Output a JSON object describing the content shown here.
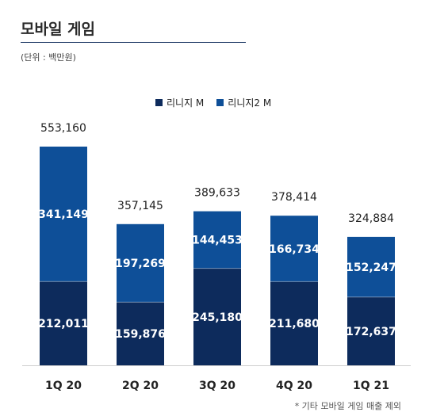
{
  "header": {
    "title": "모바일 게임",
    "unit": "(단위 : 백만원)"
  },
  "footnote": "* 기타 모바일 게임 매출 제외",
  "colors": {
    "lineage_m": "#0d2b5c",
    "lineage2_m": "#0e4f98",
    "rule": "#1f3a66",
    "axis": "#cfcfcf"
  },
  "chart_data": {
    "type": "bar",
    "stacked": true,
    "title": "모바일 게임",
    "ylabel": "",
    "xlabel": "",
    "ylim": [
      0,
      600000
    ],
    "legend_position": "top-center",
    "grid": false,
    "categories": [
      "1Q 20",
      "2Q 20",
      "3Q 20",
      "4Q 20",
      "1Q 21"
    ],
    "series": [
      {
        "name": "리니지 M",
        "color": "#0d2b5c",
        "values": [
          212011,
          159876,
          245180,
          211680,
          172637
        ],
        "labels": [
          "212,011",
          "159,876",
          "245,180",
          "211,680",
          "172,637"
        ]
      },
      {
        "name": "리니지2 M",
        "color": "#0e4f98",
        "values": [
          341149,
          197269,
          144453,
          166734,
          152247
        ],
        "labels": [
          "341,149",
          "197,269",
          "144,453",
          "166,734",
          "152,247"
        ]
      }
    ],
    "totals": [
      553160,
      357145,
      389633,
      378414,
      324884
    ],
    "total_labels": [
      "553,160",
      "357,145",
      "389,633",
      "378,414",
      "324,884"
    ]
  }
}
